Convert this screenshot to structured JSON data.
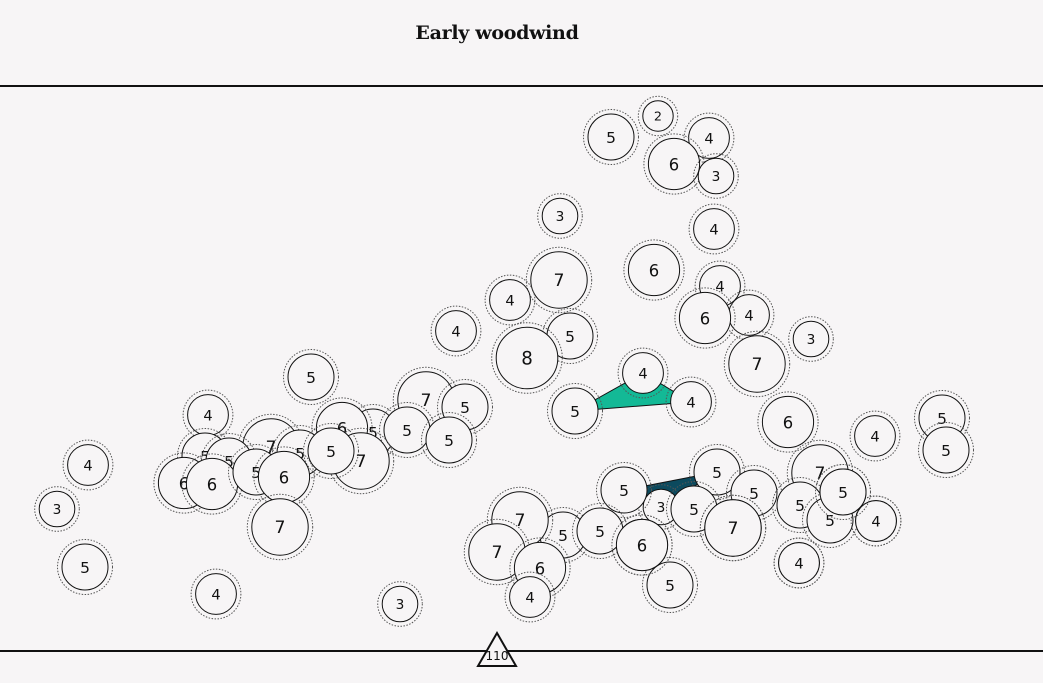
{
  "title": "Early woodwind",
  "marker_label": "110",
  "highlight_colors": {
    "teal": "#13b996",
    "navy": "#0c4a5e"
  },
  "nodes": [
    {
      "id": "n1",
      "v": "2"
    },
    {
      "id": "n2",
      "v": "5"
    },
    {
      "id": "n3",
      "v": "4"
    },
    {
      "id": "n4",
      "v": "6"
    },
    {
      "id": "n5",
      "v": "3"
    },
    {
      "id": "n6",
      "v": "3"
    },
    {
      "id": "n7",
      "v": "4"
    },
    {
      "id": "n8",
      "v": "7"
    },
    {
      "id": "n9",
      "v": "6"
    },
    {
      "id": "n10",
      "v": "4"
    },
    {
      "id": "n11",
      "v": "4"
    },
    {
      "id": "n12",
      "v": "4"
    },
    {
      "id": "n13",
      "v": "6"
    },
    {
      "id": "n14",
      "v": "4"
    },
    {
      "id": "n15",
      "v": "5"
    },
    {
      "id": "n16",
      "v": "3"
    },
    {
      "id": "n17",
      "v": "8"
    },
    {
      "id": "n18",
      "v": "7"
    },
    {
      "id": "n19",
      "v": "5"
    },
    {
      "id": "n20",
      "v": "4"
    },
    {
      "id": "n21",
      "v": "4"
    },
    {
      "id": "n22",
      "v": "5"
    },
    {
      "id": "n23",
      "v": "7"
    },
    {
      "id": "n24",
      "v": "5"
    },
    {
      "id": "n25",
      "v": "4"
    },
    {
      "id": "n26",
      "v": "6"
    },
    {
      "id": "n27",
      "v": "5"
    },
    {
      "id": "n28",
      "v": "5"
    },
    {
      "id": "n29",
      "v": "5"
    },
    {
      "id": "n30",
      "v": "6"
    },
    {
      "id": "n31",
      "v": "4"
    },
    {
      "id": "n32",
      "v": "5"
    },
    {
      "id": "n33",
      "v": "5"
    },
    {
      "id": "n34",
      "v": "7"
    },
    {
      "id": "n35",
      "v": "5"
    },
    {
      "id": "n36",
      "v": "5"
    },
    {
      "id": "n37",
      "v": "5"
    },
    {
      "id": "n38",
      "v": "7"
    },
    {
      "id": "n39",
      "v": "6"
    },
    {
      "id": "n40",
      "v": "6"
    },
    {
      "id": "n41",
      "v": "5"
    },
    {
      "id": "n42",
      "v": "5"
    },
    {
      "id": "n43",
      "v": "6"
    },
    {
      "id": "n44",
      "v": "4"
    },
    {
      "id": "n45",
      "v": "3"
    },
    {
      "id": "n46",
      "v": "7"
    },
    {
      "id": "n47",
      "v": "5"
    },
    {
      "id": "n48",
      "v": "4"
    },
    {
      "id": "n49",
      "v": "3"
    },
    {
      "id": "n50",
      "v": "7"
    },
    {
      "id": "n51",
      "v": "5"
    },
    {
      "id": "n52",
      "v": "5"
    },
    {
      "id": "n53",
      "v": "4"
    },
    {
      "id": "n54",
      "v": "5"
    },
    {
      "id": "n55",
      "v": "3"
    },
    {
      "id": "n56",
      "v": "5"
    },
    {
      "id": "n57",
      "v": "5"
    },
    {
      "id": "n58",
      "v": "7"
    },
    {
      "id": "n59",
      "v": "6"
    },
    {
      "id": "n60",
      "v": "5"
    },
    {
      "id": "n61",
      "v": "4"
    },
    {
      "id": "n62",
      "v": "7"
    },
    {
      "id": "n63",
      "v": "7"
    },
    {
      "id": "n64",
      "v": "6"
    },
    {
      "id": "n65",
      "v": "4"
    },
    {
      "id": "n66",
      "v": "5"
    },
    {
      "id": "n67",
      "v": "5"
    },
    {
      "id": "n68",
      "v": "5"
    },
    {
      "id": "n69",
      "v": "5"
    },
    {
      "id": "n70",
      "v": "7"
    },
    {
      "id": "n71",
      "v": "4"
    },
    {
      "id": "n72",
      "v": "5"
    },
    {
      "id": "n73",
      "v": "4"
    },
    {
      "id": "n74",
      "v": "6"
    }
  ]
}
